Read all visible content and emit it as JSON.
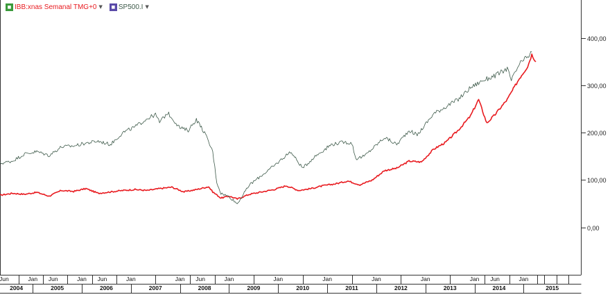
{
  "legend": [
    {
      "label": "IBB:xnas Semanal TMG+0",
      "color": "#e8191e",
      "icon": "green-square-icon"
    },
    {
      "label": "SP500.I",
      "color": "#3e5a4a",
      "icon": "purple-square-icon"
    }
  ],
  "colors": {
    "series1": "#e8191e",
    "series2": "#3e5a4a",
    "grid": "#333333",
    "background": "#ffffff"
  },
  "chart_data": {
    "type": "line",
    "title": "",
    "xlabel": "",
    "ylabel": "",
    "y_ticks": [
      "400,00",
      "300,00",
      "200,00",
      "100,00",
      "0,00"
    ],
    "y_tick_values": [
      400,
      300,
      200,
      100,
      0
    ],
    "ylim": [
      -100,
      480
    ],
    "x_time_start": "2004-05",
    "x_time_end": "2016-03",
    "axis_side": "right",
    "grid": false,
    "x_month_labels": [
      {
        "label": "Jun",
        "date": "2004-06"
      },
      {
        "label": "Jan",
        "date": "2005-01"
      },
      {
        "label": "Jun",
        "date": "2005-06"
      },
      {
        "label": "Jan",
        "date": "2006-01"
      },
      {
        "label": "Jun",
        "date": "2006-06"
      },
      {
        "label": "Jan",
        "date": "2007-01"
      },
      {
        "label": "Jan",
        "date": "2008-01"
      },
      {
        "label": "Jun",
        "date": "2008-06"
      },
      {
        "label": "Jan",
        "date": "2009-01"
      },
      {
        "label": "Jan",
        "date": "2010-01"
      },
      {
        "label": "Jan",
        "date": "2011-01"
      },
      {
        "label": "Jan",
        "date": "2012-01"
      },
      {
        "label": "Jan",
        "date": "2013-01"
      },
      {
        "label": "Jan",
        "date": "2014-01"
      },
      {
        "label": "Jun",
        "date": "2014-06"
      },
      {
        "label": "Jan",
        "date": "2015-01"
      }
    ],
    "x_year_labels": [
      {
        "label": "2004",
        "date": "2004-05",
        "end": "2005-01"
      },
      {
        "label": "2005",
        "date": "2005-01",
        "end": "2006-01"
      },
      {
        "label": "2006",
        "date": "2006-01",
        "end": "2007-01"
      },
      {
        "label": "2007",
        "date": "2007-01",
        "end": "2008-01"
      },
      {
        "label": "2008",
        "date": "2008-01",
        "end": "2009-01"
      },
      {
        "label": "2009",
        "date": "2009-01",
        "end": "2010-01"
      },
      {
        "label": "2010",
        "date": "2010-01",
        "end": "2011-01"
      },
      {
        "label": "2011",
        "date": "2011-01",
        "end": "2012-01"
      },
      {
        "label": "2012",
        "date": "2012-01",
        "end": "2013-01"
      },
      {
        "label": "2013",
        "date": "2013-01",
        "end": "2014-01"
      },
      {
        "label": "2014",
        "date": "2014-01",
        "end": "2015-01"
      },
      {
        "label": "2015",
        "date": "2015-01",
        "end": "2016-03"
      }
    ],
    "series": [
      {
        "name": "IBB:xnas Semanal TMG+0",
        "color": "#e8191e",
        "points": [
          [
            "2004-05",
            68
          ],
          [
            "2004-08",
            72
          ],
          [
            "2004-11",
            70
          ],
          [
            "2005-02",
            74
          ],
          [
            "2005-05",
            66
          ],
          [
            "2005-08",
            78
          ],
          [
            "2005-11",
            76
          ],
          [
            "2006-02",
            82
          ],
          [
            "2006-05",
            72
          ],
          [
            "2006-08",
            75
          ],
          [
            "2006-11",
            78
          ],
          [
            "2007-02",
            80
          ],
          [
            "2007-05",
            78
          ],
          [
            "2007-08",
            82
          ],
          [
            "2007-11",
            85
          ],
          [
            "2008-02",
            75
          ],
          [
            "2008-05",
            80
          ],
          [
            "2008-08",
            86
          ],
          [
            "2008-09",
            75
          ],
          [
            "2008-11",
            62
          ],
          [
            "2009-01",
            66
          ],
          [
            "2009-03",
            60
          ],
          [
            "2009-06",
            70
          ],
          [
            "2009-09",
            75
          ],
          [
            "2009-12",
            80
          ],
          [
            "2010-03",
            88
          ],
          [
            "2010-06",
            78
          ],
          [
            "2010-09",
            82
          ],
          [
            "2010-12",
            88
          ],
          [
            "2011-03",
            92
          ],
          [
            "2011-06",
            98
          ],
          [
            "2011-09",
            90
          ],
          [
            "2011-12",
            100
          ],
          [
            "2012-03",
            120
          ],
          [
            "2012-06",
            125
          ],
          [
            "2012-09",
            140
          ],
          [
            "2012-12",
            138
          ],
          [
            "2013-03",
            165
          ],
          [
            "2013-06",
            180
          ],
          [
            "2013-09",
            205
          ],
          [
            "2013-12",
            235
          ],
          [
            "2014-02",
            270
          ],
          [
            "2014-04",
            220
          ],
          [
            "2014-06",
            238
          ],
          [
            "2014-09",
            270
          ],
          [
            "2014-12",
            315
          ],
          [
            "2015-02",
            340
          ],
          [
            "2015-03",
            365
          ],
          [
            "2015-04",
            350
          ]
        ]
      },
      {
        "name": "SP500.I",
        "color": "#3e5a4a",
        "points": [
          [
            "2004-05",
            135
          ],
          [
            "2004-08",
            140
          ],
          [
            "2004-11",
            155
          ],
          [
            "2005-02",
            160
          ],
          [
            "2005-05",
            152
          ],
          [
            "2005-08",
            170
          ],
          [
            "2005-11",
            172
          ],
          [
            "2006-02",
            178
          ],
          [
            "2006-05",
            182
          ],
          [
            "2006-08",
            175
          ],
          [
            "2006-11",
            200
          ],
          [
            "2007-02",
            212
          ],
          [
            "2007-05",
            230
          ],
          [
            "2007-07",
            238
          ],
          [
            "2007-08",
            222
          ],
          [
            "2007-10",
            242
          ],
          [
            "2008-01",
            210
          ],
          [
            "2008-03",
            205
          ],
          [
            "2008-05",
            228
          ],
          [
            "2008-07",
            200
          ],
          [
            "2008-09",
            160
          ],
          [
            "2008-10",
            95
          ],
          [
            "2008-11",
            72
          ],
          [
            "2009-01",
            65
          ],
          [
            "2009-03",
            50
          ],
          [
            "2009-06",
            90
          ],
          [
            "2009-09",
            110
          ],
          [
            "2009-12",
            130
          ],
          [
            "2010-04",
            160
          ],
          [
            "2010-07",
            125
          ],
          [
            "2010-10",
            150
          ],
          [
            "2011-02",
            175
          ],
          [
            "2011-05",
            180
          ],
          [
            "2011-07",
            178
          ],
          [
            "2011-08",
            145
          ],
          [
            "2011-10",
            150
          ],
          [
            "2012-03",
            190
          ],
          [
            "2012-06",
            175
          ],
          [
            "2012-09",
            205
          ],
          [
            "2012-11",
            195
          ],
          [
            "2013-03",
            240
          ],
          [
            "2013-06",
            255
          ],
          [
            "2013-09",
            270
          ],
          [
            "2013-12",
            295
          ],
          [
            "2014-03",
            310
          ],
          [
            "2014-06",
            320
          ],
          [
            "2014-09",
            335
          ],
          [
            "2014-10",
            310
          ],
          [
            "2014-12",
            345
          ],
          [
            "2015-02",
            360
          ],
          [
            "2015-03",
            370
          ]
        ]
      }
    ]
  }
}
